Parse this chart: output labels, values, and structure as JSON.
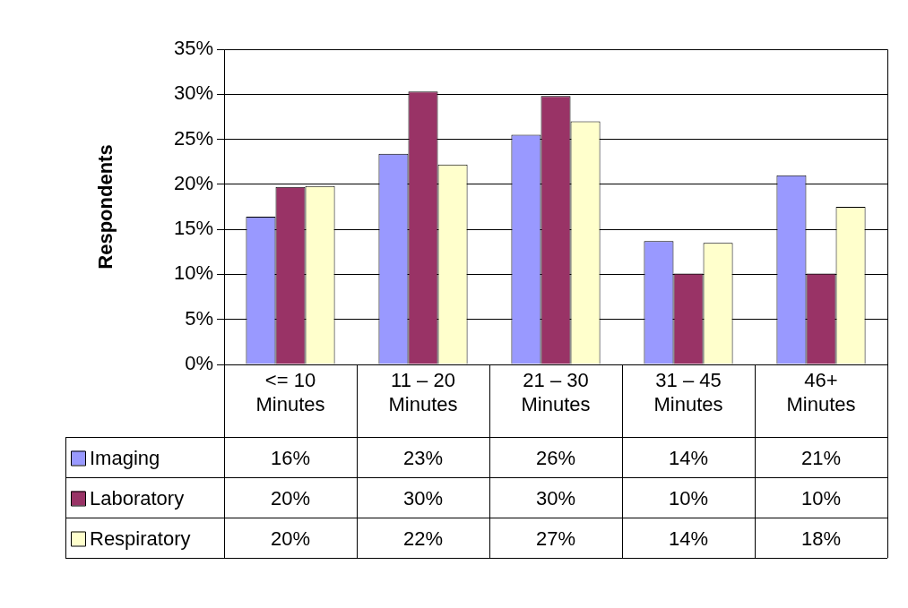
{
  "chart_data": {
    "type": "bar",
    "ylabel": "Respondents",
    "categories": [
      "<= 10 Minutes",
      "11 – 20 Minutes",
      "21 – 30 Minutes",
      "31 – 45 Minutes",
      "46+ Minutes"
    ],
    "series": [
      {
        "name": "Imaging",
        "color": "#9999ff",
        "values": [
          16.4,
          23.4,
          25.5,
          13.7,
          21.0
        ],
        "value_labels": [
          "16%",
          "23%",
          "26%",
          "14%",
          "21%"
        ]
      },
      {
        "name": "Laboratory",
        "color": "#993366",
        "values": [
          19.7,
          30.3,
          29.8,
          10.1,
          10.1
        ],
        "value_labels": [
          "20%",
          "30%",
          "30%",
          "10%",
          "10%"
        ]
      },
      {
        "name": "Respiratory",
        "color": "#ffffcc",
        "values": [
          19.8,
          22.2,
          27.0,
          13.5,
          17.5
        ],
        "value_labels": [
          "20%",
          "22%",
          "27%",
          "14%",
          "18%"
        ]
      }
    ],
    "ylim": [
      0,
      35
    ],
    "yticks": [
      {
        "value": 0,
        "label": "0%"
      },
      {
        "value": 5,
        "label": "5%"
      },
      {
        "value": 10,
        "label": "10%"
      },
      {
        "value": 15,
        "label": "15%"
      },
      {
        "value": 20,
        "label": "20%"
      },
      {
        "value": 25,
        "label": "25%"
      },
      {
        "value": 30,
        "label": "30%"
      },
      {
        "value": 35,
        "label": "35%"
      }
    ],
    "grid": "y",
    "legend": "bottom"
  }
}
